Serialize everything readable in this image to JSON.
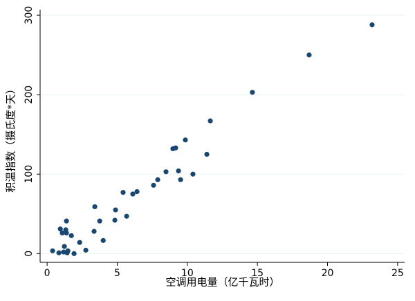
{
  "chart_data": {
    "type": "scatter",
    "x_label": "空调用电量（亿千瓦时）",
    "y_label": "积温指数（摄氏度*天）",
    "color": "#1a476f",
    "grid": true,
    "xlim": [
      -0.5,
      25.5
    ],
    "xticks": [
      0,
      5,
      10,
      15,
      20,
      25
    ],
    "ylim": [
      -11,
      307
    ],
    "yticks": [
      0,
      100,
      200,
      300
    ],
    "x": [
      0.39,
      0.84,
      0.94,
      1.08,
      1.18,
      1.23,
      1.33,
      1.38,
      1.38,
      1.43,
      1.48,
      1.73,
      1.92,
      2.32,
      2.76,
      3.35,
      3.4,
      3.75,
      4.0,
      4.83,
      4.88,
      5.42,
      5.67,
      6.11,
      6.41,
      7.59,
      7.89,
      8.48,
      8.97,
      9.17,
      9.37,
      9.52,
      9.86,
      10.4,
      11.39,
      11.64,
      14.64,
      18.69,
      23.18
    ],
    "values": [
      3.5,
      1,
      31,
      26,
      2,
      9,
      30,
      41,
      26,
      1,
      3.5,
      22.6,
      0,
      14,
      4.3,
      28,
      59,
      41,
      16.5,
      42,
      55,
      77,
      47,
      75,
      78,
      86,
      93,
      103,
      132,
      133,
      104,
      93,
      143,
      100,
      125,
      167,
      203,
      250,
      288
    ]
  }
}
